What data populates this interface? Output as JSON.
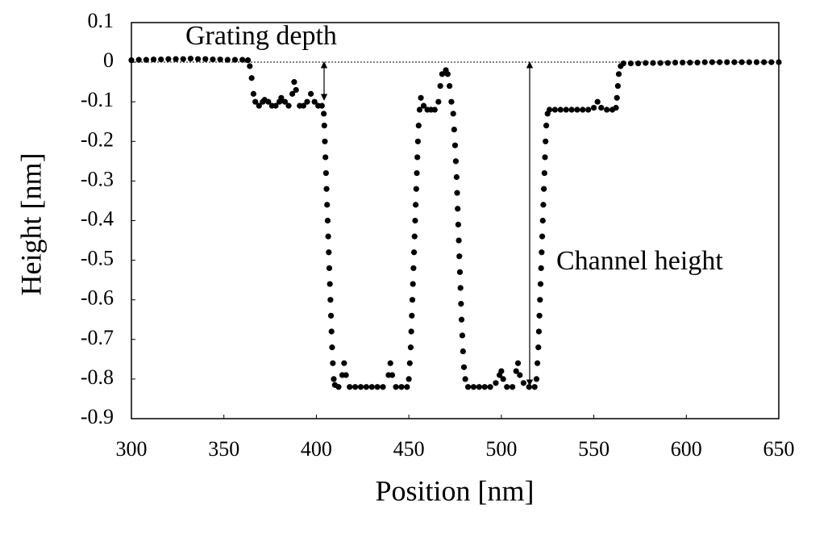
{
  "chart_data": {
    "type": "scatter",
    "x_label": "Position [nm]",
    "y_label": "Height [nm]",
    "annotations": [
      "Grating depth",
      "Channel height"
    ],
    "color": "#000000",
    "xlim": [
      300,
      650
    ],
    "xticks": [
      300,
      350,
      400,
      450,
      500,
      550,
      600,
      650
    ],
    "ylim": [
      -0.9,
      0.1
    ],
    "yticks": [
      0.1,
      0,
      -0.1,
      -0.2,
      -0.3,
      -0.4,
      -0.5,
      -0.6,
      -0.7,
      -0.8,
      -0.9
    ],
    "x": [
      300,
      304,
      308,
      312,
      316,
      320,
      324,
      328,
      332,
      336,
      340,
      344,
      348,
      352,
      356,
      360,
      363,
      364,
      365,
      366,
      367,
      369,
      371,
      372,
      374,
      376,
      378,
      380,
      381,
      383,
      385,
      387,
      388,
      389,
      391,
      393,
      395,
      397,
      399,
      401,
      403,
      404,
      404.3,
      404.6,
      404.9,
      405.2,
      405.5,
      405.8,
      406.1,
      406.4,
      406.7,
      407,
      407.3,
      407.6,
      407.9,
      408.2,
      408.5,
      408.9,
      409.4,
      410,
      412,
      414,
      415,
      416,
      418,
      421,
      424,
      427,
      430,
      433,
      436,
      439,
      440,
      441,
      443,
      446,
      449,
      450,
      450.5,
      451,
      451.3,
      451.6,
      451.9,
      452.2,
      452.5,
      452.8,
      453.1,
      453.4,
      453.7,
      454,
      454.3,
      454.6,
      454.9,
      455.3,
      455.8,
      456.5,
      458,
      460,
      462,
      464,
      466,
      467,
      468,
      470,
      471,
      472,
      473,
      474,
      474.5,
      475,
      475.4,
      475.8,
      476.1,
      476.4,
      476.7,
      477,
      477.3,
      477.6,
      477.9,
      478.2,
      478.5,
      478.9,
      479.3,
      479.8,
      480.5,
      482,
      485,
      488,
      491,
      494,
      497,
      499,
      500,
      501,
      503,
      506,
      508,
      509,
      510,
      512,
      515,
      518,
      519,
      519.5,
      520,
      520.3,
      520.6,
      520.9,
      521.2,
      521.5,
      521.8,
      522.1,
      522.4,
      522.7,
      523,
      523.3,
      523.6,
      523.9,
      524.3,
      525,
      526,
      529,
      532,
      535,
      538,
      541,
      544,
      547,
      550,
      552,
      554,
      557,
      560,
      562,
      562.5,
      563,
      563.5,
      564.5,
      566,
      570,
      574,
      578,
      582,
      586,
      590,
      594,
      598,
      602,
      606,
      610,
      614,
      618,
      622,
      626,
      630,
      634,
      638,
      642,
      646,
      650
    ],
    "values": [
      0.005,
      0.006,
      0.006,
      0.007,
      0.007,
      0.008,
      0.008,
      0.008,
      0.009,
      0.008,
      0.008,
      0.007,
      0.007,
      0.006,
      0.006,
      0.006,
      0.005,
      -0.01,
      -0.04,
      -0.08,
      -0.1,
      -0.11,
      -0.1,
      -0.095,
      -0.1,
      -0.11,
      -0.11,
      -0.1,
      -0.09,
      -0.1,
      -0.11,
      -0.08,
      -0.05,
      -0.07,
      -0.11,
      -0.11,
      -0.1,
      -0.08,
      -0.1,
      -0.11,
      -0.11,
      -0.13,
      -0.16,
      -0.2,
      -0.24,
      -0.28,
      -0.32,
      -0.36,
      -0.4,
      -0.44,
      -0.48,
      -0.52,
      -0.56,
      -0.6,
      -0.64,
      -0.68,
      -0.72,
      -0.76,
      -0.8,
      -0.815,
      -0.82,
      -0.79,
      -0.76,
      -0.79,
      -0.82,
      -0.82,
      -0.82,
      -0.82,
      -0.82,
      -0.82,
      -0.82,
      -0.79,
      -0.76,
      -0.79,
      -0.82,
      -0.82,
      -0.82,
      -0.8,
      -0.76,
      -0.72,
      -0.68,
      -0.64,
      -0.6,
      -0.56,
      -0.52,
      -0.48,
      -0.44,
      -0.4,
      -0.36,
      -0.32,
      -0.28,
      -0.24,
      -0.2,
      -0.16,
      -0.12,
      -0.09,
      -0.11,
      -0.12,
      -0.12,
      -0.12,
      -0.1,
      -0.06,
      -0.03,
      -0.02,
      -0.03,
      -0.06,
      -0.1,
      -0.13,
      -0.17,
      -0.21,
      -0.25,
      -0.29,
      -0.33,
      -0.37,
      -0.41,
      -0.45,
      -0.49,
      -0.53,
      -0.57,
      -0.61,
      -0.65,
      -0.69,
      -0.73,
      -0.77,
      -0.8,
      -0.82,
      -0.82,
      -0.82,
      -0.82,
      -0.82,
      -0.81,
      -0.79,
      -0.78,
      -0.8,
      -0.82,
      -0.82,
      -0.78,
      -0.76,
      -0.79,
      -0.81,
      -0.82,
      -0.82,
      -0.8,
      -0.76,
      -0.72,
      -0.68,
      -0.64,
      -0.6,
      -0.56,
      -0.52,
      -0.48,
      -0.44,
      -0.4,
      -0.36,
      -0.32,
      -0.28,
      -0.24,
      -0.2,
      -0.16,
      -0.13,
      -0.12,
      -0.12,
      -0.12,
      -0.12,
      -0.12,
      -0.12,
      -0.12,
      -0.12,
      -0.115,
      -0.1,
      -0.115,
      -0.12,
      -0.12,
      -0.115,
      -0.09,
      -0.06,
      -0.03,
      -0.01,
      -0.003,
      -0.003,
      -0.003,
      -0.002,
      -0.002,
      -0.002,
      -0.002,
      -0.001,
      -0.001,
      -0.001,
      -0.001,
      0,
      0,
      0,
      0,
      0,
      0,
      0,
      0,
      0,
      0,
      0
    ]
  }
}
